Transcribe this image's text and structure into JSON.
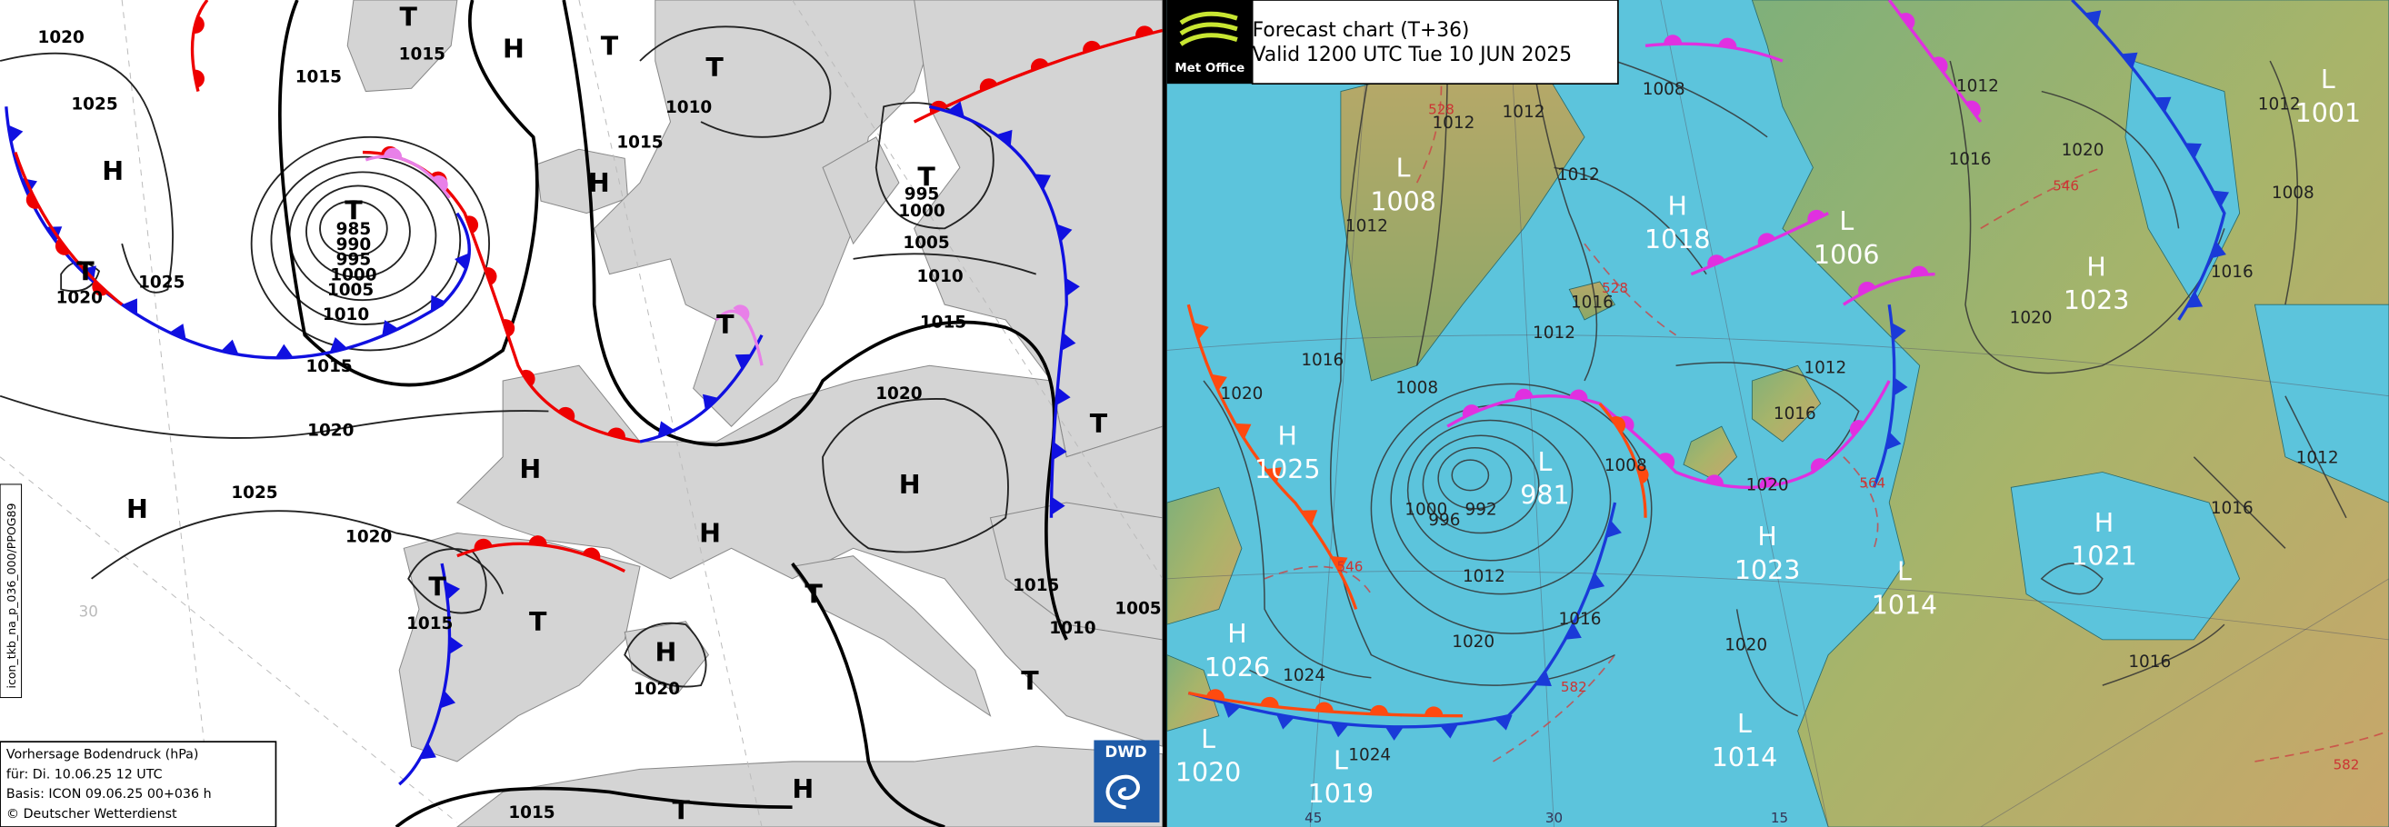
{
  "dwd_chart": {
    "labels": [
      "1020",
      "T",
      "1015",
      "H",
      "T",
      "T",
      "1015",
      "1025",
      "1010",
      "H",
      "T",
      "985",
      "990",
      "995",
      "1000",
      "1005",
      "1010",
      "1015",
      "H",
      "T",
      "995",
      "1000",
      "1005",
      "1010",
      "T",
      "1020",
      "1025",
      "T",
      "1015",
      "1015",
      "1020",
      "1020",
      "H",
      "T",
      "H",
      "H",
      "1025",
      "H",
      "1020",
      "T",
      "1015",
      "T",
      "T",
      "1015",
      "1010",
      "1005",
      "H",
      "1020",
      "T",
      "T",
      "H",
      "1015"
    ],
    "grid_label": "30",
    "side_label": "icon_tkb_na_p_036_000/PPOG89",
    "legend": [
      "Vorhersage Bodendruck (hPa)",
      "für:  Di. 10.06.25  12 UTC",
      "Basis: ICON  09.06.25 00+036 h",
      "© Deutscher Wetterdienst"
    ],
    "logo": "DWD"
  },
  "metoffice_chart": {
    "logo": "Met Office",
    "title": "Forecast chart (T+36)",
    "valid": "Valid 1200 UTC Tue 10 JUN 2025",
    "centres": [
      {
        "letter": "L",
        "value": "1008"
      },
      {
        "letter": "H",
        "value": "1018"
      },
      {
        "letter": "L",
        "value": "1006"
      },
      {
        "letter": "H",
        "value": "1023"
      },
      {
        "letter": "L",
        "value": "1001"
      },
      {
        "letter": "H",
        "value": "1025"
      },
      {
        "letter": "L",
        "value": "981"
      },
      {
        "letter": "H",
        "value": "1023"
      },
      {
        "letter": "L",
        "value": "1014"
      },
      {
        "letter": "H",
        "value": "1021"
      },
      {
        "letter": "H",
        "value": "1026"
      },
      {
        "letter": "L",
        "value": "1020"
      },
      {
        "letter": "L",
        "value": "1019"
      },
      {
        "letter": "L",
        "value": "1014"
      }
    ],
    "isobar_labels": [
      "1012",
      "1012",
      "1008",
      "1012",
      "1012",
      "1016",
      "1012",
      "1016",
      "1008",
      "1020",
      "1012",
      "1016",
      "1020",
      "1008",
      "1000",
      "996",
      "992",
      "1012",
      "1016",
      "1020",
      "1024",
      "1024",
      "1020",
      "1012",
      "1016",
      "1020",
      "1020",
      "1008",
      "1012",
      "1016",
      "1012",
      "1016",
      "1016"
    ],
    "thickness_labels": [
      "528",
      "528",
      "546",
      "546",
      "564",
      "582",
      "582"
    ],
    "grid_labels": [
      "45",
      "30",
      "15"
    ]
  }
}
